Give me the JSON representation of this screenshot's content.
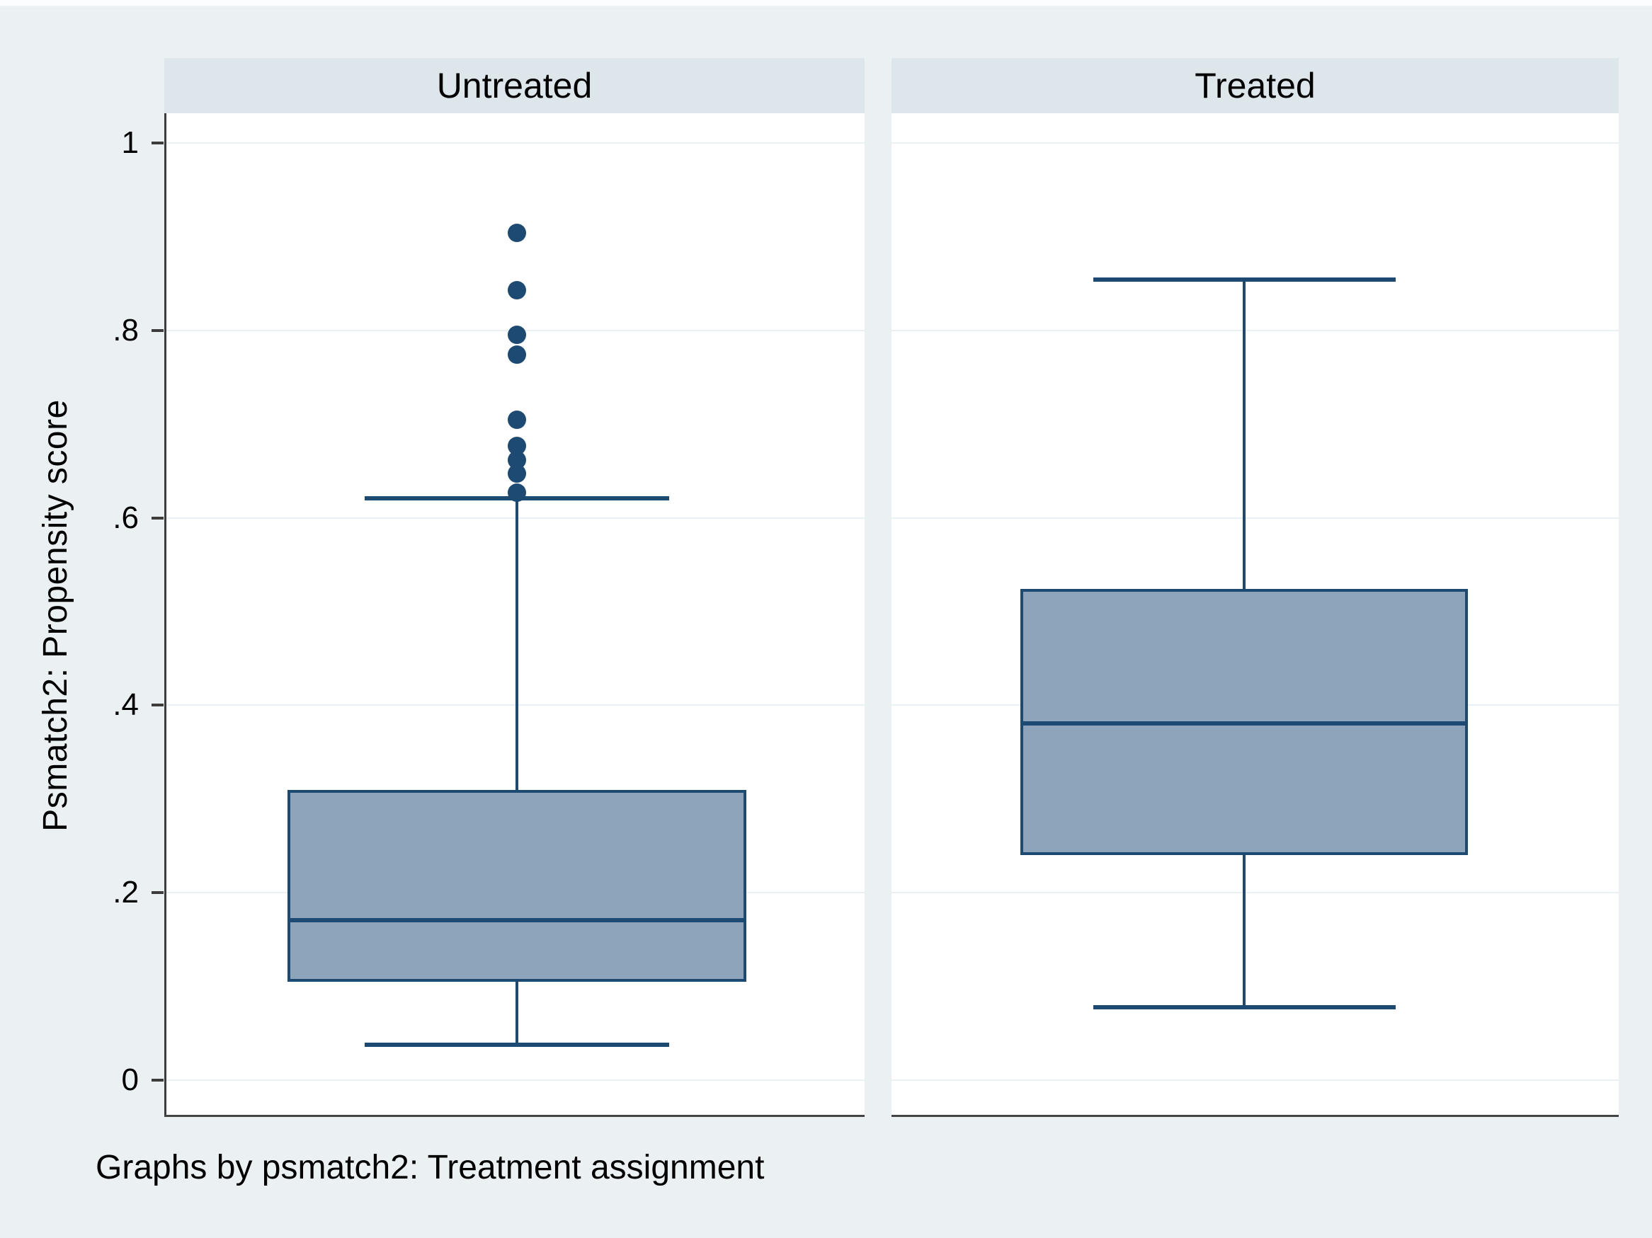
{
  "colors": {
    "background": "#ebf0f2",
    "plot_background": "#ffffff",
    "header_background": "#dde6ea",
    "grid": "#e9f1f4",
    "axis": "#3c3c3c",
    "box_fill": "#8da4bb",
    "box_stroke": "#1c4a72",
    "text": "#000000"
  },
  "ylabel": "Psmatch2: Propensity score",
  "caption": "Graphs by psmatch2: Treatment assignment",
  "chart_data": {
    "type": "box",
    "layout": "two vertical box plots in side-by-side by-panels, shared y axis on left",
    "panel_titles": [
      "Untreated",
      "Treated"
    ],
    "ylabel": "Psmatch2: Propensity score",
    "caption": "Graphs by psmatch2: Treatment assignment",
    "ylim": [
      0,
      1
    ],
    "yticks": [
      1,
      0.8,
      0.6,
      0.4,
      0.2,
      0
    ],
    "ytick_labels": [
      "1",
      ".8",
      ".6",
      ".4",
      ".2",
      "0"
    ],
    "grid": "horizontal",
    "legend": "none",
    "series": [
      {
        "name": "Untreated",
        "q1": 0.105,
        "median": 0.171,
        "q3": 0.31,
        "whisker_low": 0.038,
        "whisker_high": 0.621,
        "outliers": [
          0.904,
          0.843,
          0.795,
          0.774,
          0.705,
          0.677,
          0.662,
          0.647,
          0.627
        ]
      },
      {
        "name": "Treated",
        "q1": 0.24,
        "median": 0.381,
        "q3": 0.524,
        "whisker_low": 0.078,
        "whisker_high": 0.854,
        "outliers": []
      }
    ]
  }
}
